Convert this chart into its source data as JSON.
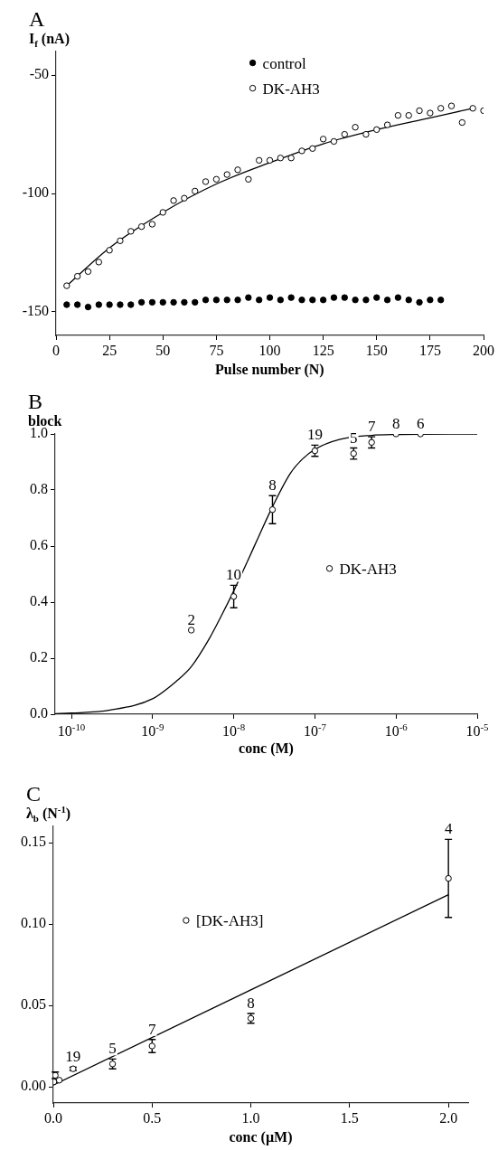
{
  "chart_data": [
    {
      "type": "scatter",
      "title": "A",
      "xlabel": "Pulse number (N)",
      "ylabel": "I$_{f}$ (nA)",
      "xlim": [
        0,
        200
      ],
      "xticks": [
        0,
        25,
        50,
        75,
        100,
        125,
        150,
        175,
        200
      ],
      "ylim": [
        -160,
        -40
      ],
      "yticks": [
        -150,
        -100,
        -50
      ],
      "legend": "top",
      "series": [
        {
          "name": "control",
          "color": "#000000",
          "marker": "circle",
          "x": [
            5,
            10,
            15,
            20,
            25,
            30,
            35,
            40,
            45,
            50,
            55,
            60,
            65,
            70,
            75,
            80,
            85,
            90,
            95,
            100,
            105,
            110,
            115,
            120,
            125,
            130,
            135,
            140,
            145,
            150,
            155,
            160,
            165,
            170,
            175,
            180
          ],
          "values": [
            -147,
            -147,
            -148,
            -147,
            -147,
            -147,
            -147,
            -146,
            -146,
            -146,
            -146,
            -146,
            -146,
            -145,
            -145,
            -145,
            -145,
            -144,
            -145,
            -144,
            -145,
            -144,
            -145,
            -145,
            -145,
            -144,
            -144,
            -145,
            -145,
            -144,
            -145,
            -144,
            -145,
            -146,
            -145,
            -145
          ]
        },
        {
          "name": "DK-AH3",
          "color": "#ffffff",
          "marker": "circle",
          "x": [
            5,
            10,
            15,
            20,
            25,
            30,
            35,
            40,
            45,
            50,
            55,
            60,
            65,
            70,
            75,
            80,
            85,
            90,
            95,
            100,
            105,
            110,
            115,
            120,
            125,
            130,
            135,
            140,
            145,
            150,
            155,
            160,
            165,
            170,
            175,
            180,
            185,
            190,
            195,
            200
          ],
          "values": [
            -139,
            -135,
            -133,
            -129,
            -124,
            -120,
            -116,
            -114,
            -113,
            -108,
            -103,
            -102,
            -99,
            -95,
            -94,
            -92,
            -90,
            -94,
            -86,
            -86,
            -85,
            -85,
            -82,
            -81,
            -77,
            -78,
            -75,
            -72,
            -75,
            -73,
            -71,
            -67,
            -67,
            -65,
            -66,
            -64,
            -63,
            -70,
            -64,
            -65
          ]
        },
        {
          "type": "line",
          "color": "#000000",
          "marker": "none",
          "x": [
            5,
            25,
            50,
            75,
            100,
            125,
            150,
            175,
            195
          ],
          "values": [
            -139,
            -123,
            -108,
            -96,
            -87,
            -79,
            -73,
            -68,
            -64
          ]
        }
      ]
    },
    {
      "type": "scatter",
      "title": "B",
      "xlabel": "conc (M)",
      "ylabel": "block",
      "log": "x",
      "xlim": [
        6.3e-11,
        1e-05
      ],
      "xticks": [
        {
          "value": 1e-10,
          "label": "10$^{-10}$"
        },
        {
          "value": 1e-09,
          "label": "10$^{-9}$"
        },
        {
          "value": 1e-08,
          "label": "10$^{-8}$"
        },
        {
          "value": 1e-07,
          "label": "10$^{-7}$"
        },
        {
          "value": 1e-06,
          "label": "10$^{-6}$"
        },
        {
          "value": 1e-05,
          "label": "10$^{-5}$"
        }
      ],
      "ylim": [
        0,
        1
      ],
      "yticks": [
        {
          "value": 0,
          "label": "0.0"
        },
        {
          "value": 0.2,
          "label": "0.2"
        },
        {
          "value": 0.4,
          "label": "0.4"
        },
        {
          "value": 0.6,
          "label": "0.6"
        },
        {
          "value": 0.8,
          "label": "0.8"
        },
        {
          "value": 1,
          "label": "1.0"
        }
      ],
      "legend": "right",
      "series": [
        {
          "name": "DK-AH3",
          "color": "#ffffff",
          "marker": "circle",
          "x": [
            3e-09,
            1e-08,
            3e-08,
            1e-07,
            3e-07,
            5e-07,
            1e-06,
            2e-06
          ],
          "values": [
            0.3,
            0.42,
            0.73,
            0.94,
            0.93,
            0.97,
            1.0,
            1.0
          ],
          "errors": [
            null,
            0.04,
            0.05,
            0.02,
            0.02,
            0.02,
            null,
            null
          ]
        },
        {
          "type": "line",
          "color": "#000000",
          "marker": "none",
          "x": [
            6.3e-11,
            1e-10,
            3e-10,
            1e-09,
            2e-09,
            3e-09,
            5e-09,
            7e-09,
            1e-08,
            1.5e-08,
            2e-08,
            3e-08,
            5e-08,
            7e-08,
            1e-07,
            2e-07,
            5e-07,
            1e-06,
            1e-05
          ],
          "values": [
            0.002,
            0.004,
            0.015,
            0.055,
            0.12,
            0.17,
            0.27,
            0.35,
            0.44,
            0.55,
            0.63,
            0.74,
            0.86,
            0.91,
            0.945,
            0.98,
            0.995,
            0.998,
            1.0
          ]
        }
      ],
      "annotations": [
        {
          "text": "2",
          "x": 3e-09,
          "y": 0.3
        },
        {
          "text": "10",
          "x": 1e-08,
          "y": 0.42
        },
        {
          "text": "8",
          "x": 3e-08,
          "y": 0.73
        },
        {
          "text": "19",
          "x": 1e-07,
          "y": 0.94
        },
        {
          "text": "5",
          "x": 3e-07,
          "y": 0.93
        },
        {
          "text": "7",
          "x": 5e-07,
          "y": 0.97
        },
        {
          "text": "8",
          "x": 1e-06,
          "y": 1.0
        },
        {
          "text": "6",
          "x": 2e-06,
          "y": 1.0
        }
      ]
    },
    {
      "type": "scatter",
      "title": "C",
      "xlabel": "conc (µM)",
      "ylabel": "λ$_{b}$ (N$^{-1}$)",
      "xlim": [
        0,
        2.1
      ],
      "xticks": [
        {
          "value": 0,
          "label": "0.0"
        },
        {
          "value": 0.5,
          "label": "0.5"
        },
        {
          "value": 1,
          "label": "1.0"
        },
        {
          "value": 1.5,
          "label": "1.5"
        },
        {
          "value": 2,
          "label": "2.0"
        }
      ],
      "ylim": [
        -0.01,
        0.16
      ],
      "yticks": [
        {
          "value": 0,
          "label": "0.00"
        },
        {
          "value": 0.05,
          "label": "0.05"
        },
        {
          "value": 0.1,
          "label": "0.10"
        },
        {
          "value": 0.15,
          "label": "0.15"
        }
      ],
      "legend": "top left",
      "series": [
        {
          "name": "[DK-AH3]",
          "color": "#ffffff",
          "marker": "circle",
          "x": [
            0.003,
            0.01,
            0.03,
            0.1,
            0.3,
            0.5,
            1.0,
            2.0
          ],
          "values": [
            0.003,
            0.007,
            0.004,
            0.011,
            0.014,
            0.025,
            0.042,
            0.128
          ],
          "errors": [
            null,
            0.002,
            null,
            0.001,
            0.003,
            0.004,
            0.003,
            0.024
          ]
        },
        {
          "type": "line",
          "color": "#000000",
          "marker": "none",
          "x": [
            0,
            2.0
          ],
          "values": [
            0.001,
            0.118
          ]
        }
      ],
      "annotations": [
        {
          "text": "19",
          "x": 0.1,
          "y": 0.011
        },
        {
          "text": "5",
          "x": 0.3,
          "y": 0.014
        },
        {
          "text": "7",
          "x": 0.5,
          "y": 0.025
        },
        {
          "text": "8",
          "x": 1.0,
          "y": 0.042
        },
        {
          "text": "4",
          "x": 2.0,
          "y": 0.128
        }
      ]
    }
  ]
}
